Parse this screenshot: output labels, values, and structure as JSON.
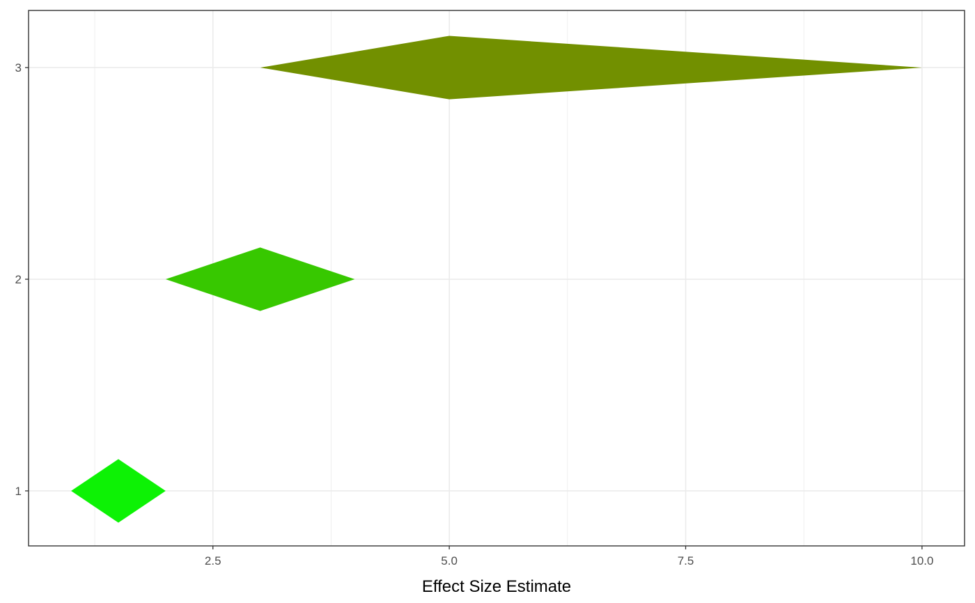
{
  "chart_data": {
    "type": "diamond",
    "title": "",
    "xlabel": "Effect Size Estimate",
    "ylabel": "",
    "xlim": [
      0.55,
      10.45
    ],
    "ylim": [
      0.74,
      3.27
    ],
    "x_major_ticks": [
      2.5,
      5.0,
      7.5,
      10.0
    ],
    "x_tick_labels": [
      "2.5",
      "5.0",
      "7.5",
      "10.0"
    ],
    "x_minor_ticks": [
      1.25,
      3.75,
      6.25,
      8.75
    ],
    "y_major_ticks": [
      1,
      2,
      3
    ],
    "y_tick_labels": [
      "1",
      "2",
      "3"
    ],
    "grid": true,
    "panel_border": true,
    "diamonds": [
      {
        "y": 1,
        "lower": 1.0,
        "estimate": 1.5,
        "upper": 2.0,
        "color": "#0DF205"
      },
      {
        "y": 2,
        "lower": 2.0,
        "estimate": 3.0,
        "upper": 4.0,
        "color": "#37C800"
      },
      {
        "y": 3,
        "lower": 3.0,
        "estimate": 5.0,
        "upper": 10.0,
        "color": "#729000"
      }
    ]
  }
}
